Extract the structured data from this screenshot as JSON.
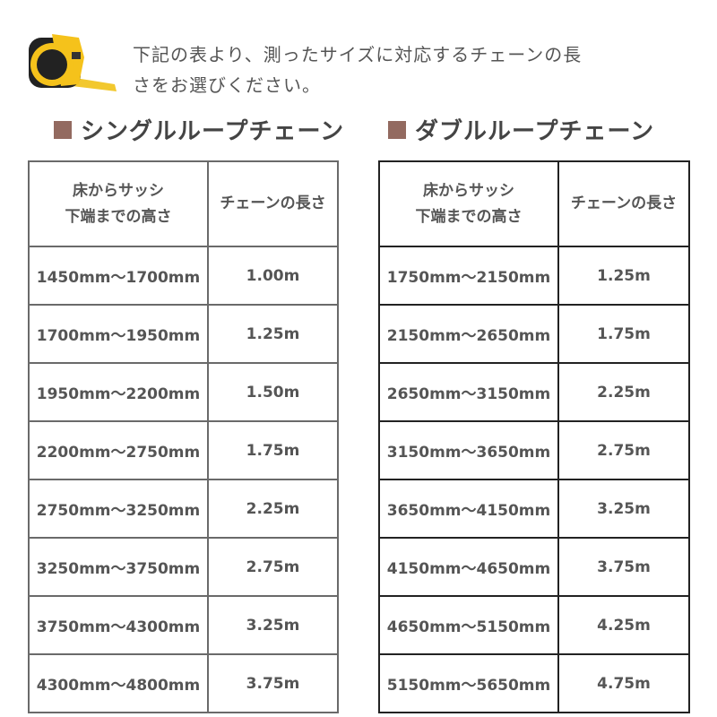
{
  "intro": "下記の表より、測ったサイズに対応するチェーンの長さをお選びください。",
  "icons": {
    "tape": "tape-measure-icon"
  },
  "colors": {
    "accent": "#936a60"
  },
  "single": {
    "title": "シングルループチェーン",
    "header": [
      "床からサッシ下端までの高さ",
      "チェーンの長さ"
    ],
    "rows": [
      [
        "1450mm〜1700mm",
        "1.00m"
      ],
      [
        "1700mm〜1950mm",
        "1.25m"
      ],
      [
        "1950mm〜2200mm",
        "1.50m"
      ],
      [
        "2200mm〜2750mm",
        "1.75m"
      ],
      [
        "2750mm〜3250mm",
        "2.25m"
      ],
      [
        "3250mm〜3750mm",
        "2.75m"
      ],
      [
        "3750mm〜4300mm",
        "3.25m"
      ],
      [
        "4300mm〜4800mm",
        "3.75m"
      ]
    ]
  },
  "double": {
    "title": "ダブルループチェーン",
    "header": [
      "床からサッシ下端までの高さ",
      "チェーンの長さ"
    ],
    "rows": [
      [
        "1750mm〜2150mm",
        "1.25m"
      ],
      [
        "2150mm〜2650mm",
        "1.75m"
      ],
      [
        "2650mm〜3150mm",
        "2.25m"
      ],
      [
        "3150mm〜3650mm",
        "2.75m"
      ],
      [
        "3650mm〜4150mm",
        "3.25m"
      ],
      [
        "4150mm〜4650mm",
        "3.75m"
      ],
      [
        "4650mm〜5150mm",
        "4.25m"
      ],
      [
        "5150mm〜5650mm",
        "4.75m"
      ]
    ]
  }
}
